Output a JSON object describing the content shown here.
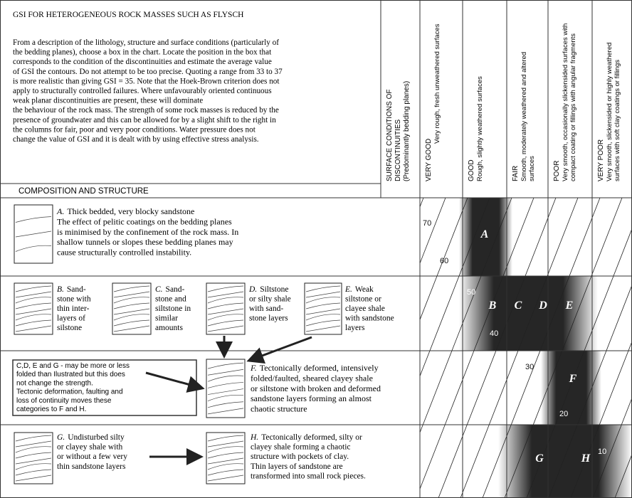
{
  "header": {
    "title": "GSI FOR HETEROGENEOUS ROCK MASSES SUCH AS FLYSCH",
    "description": [
      "From a description of the lithology, structure and surface conditions (particularly of",
      "the bedding planes), choose a box in the chart. Locate the position in the box that",
      "corresponds to the condition of the discontinuities and estimate the average value",
      "of GSI the contours. Do not attempt to be too precise. Quoting a range from 33 to 37",
      "is more realistic than giving GSI = 35. Note that the Hoek-Brown criterion does not",
      "apply to structurally controlled failures. Where unfavourably oriented continuous",
      "weak planar discontinuities are present, these will dominate",
      "the behaviour of the rock mass. The strength of some rock masses is reduced by the",
      "presence of groundwater and this can be allowed for by a slight shift to the right in",
      "the columns for fair, poor and very poor conditions. Water pressure does not",
      "change the value of GSI and it is dealt with by using effective stress analysis."
    ],
    "composition_label": "COMPOSITION AND STRUCTURE"
  },
  "surface_conditions": [
    "SURFACE CONDITIONS OF",
    "DISCONTINUITIES",
    "(Predominantly bedding planes)"
  ],
  "columns": [
    {
      "rating": "VERY GOOD",
      "description": [
        "Very rough, fresh unweathered surfaces"
      ]
    },
    {
      "rating": "GOOD",
      "description": [
        "Rough, slightly weathered surfaces"
      ]
    },
    {
      "rating": "FAIR",
      "description": [
        "Smooth, moderately weathered and altered",
        "surfaces"
      ]
    },
    {
      "rating": "POOR",
      "description": [
        "Very smooth, occasionally slickensided surfaces with",
        "compact coating or fillings with angular fragments"
      ]
    },
    {
      "rating": "VERY POOR",
      "description": [
        "Very smooth, slickensided or highly weathered",
        "surfaces with soft clay coatings or fillings"
      ]
    }
  ],
  "items": [
    {
      "letter": "A.",
      "lines": [
        "Thick bedded, very blocky sandstone",
        "The effect of pelitic coatings on the bedding planes",
        "is minimised by the confinement of the rock mass. In",
        "shallow tunnels or slopes these bedding planes may",
        "cause structurally controlled instability."
      ]
    },
    {
      "letter": "B.",
      "lines": [
        "Sand-",
        "stone with",
        "thin inter-",
        "layers of",
        "silstone"
      ]
    },
    {
      "letter": "C.",
      "lines": [
        "Sand-",
        "stone and",
        "siltstone in",
        "similar",
        "amounts"
      ]
    },
    {
      "letter": "D.",
      "lines": [
        "Siltstone",
        "or silty shale",
        "with sand-",
        "stone layers"
      ]
    },
    {
      "letter": "E.",
      "lines": [
        "Weak",
        "siltstone or",
        "clayee shale",
        "with sandstone",
        "layers"
      ]
    },
    {
      "letter": "F.",
      "lines": [
        "Tectonically deformed, intensively",
        "folded/faulted, sheared clayey shale",
        "or siltstone with broken and deformed",
        "sandstone layers forming an almost",
        "chaotic structure"
      ]
    },
    {
      "letter": "G.",
      "lines": [
        "Undisturbed silty",
        "or clayey shale with",
        "or without a few very",
        "thin sandstone layers"
      ]
    },
    {
      "letter": "H.",
      "lines": [
        "Tectonically deformed, silty or",
        "clayey shale forming a chaotic",
        "structure with pockets of clay.",
        "Thin layers of sandstone are",
        "transformed into small rock pieces."
      ]
    }
  ],
  "note": [
    "C,D, E and G - may be more or less",
    "folded than Ilustrated but this does",
    "not change the strength.",
    "Tectonic deformation, faulting and",
    "loss of continuity moves these",
    "categories to F and H."
  ],
  "zones": [
    "A",
    "B",
    "C",
    "D",
    "E",
    "F",
    "G",
    "H"
  ],
  "contours": [
    "70",
    "60",
    "50",
    "40",
    "30",
    "20",
    "10"
  ]
}
